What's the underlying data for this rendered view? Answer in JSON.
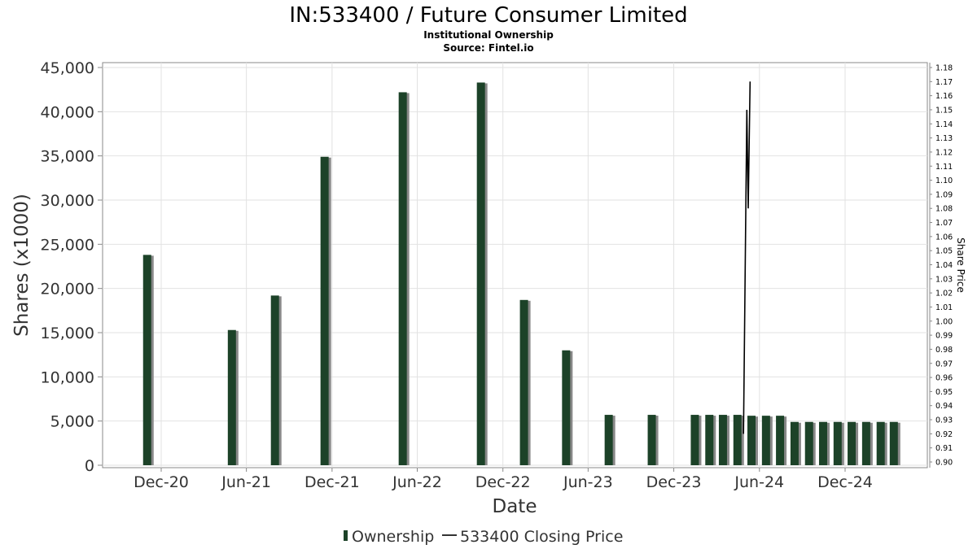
{
  "chart_data": {
    "type": "bar",
    "title": "IN:533400 / Future Consumer Limited",
    "subtitle": "Institutional Ownership",
    "source": "Source: Fintel.io",
    "xlabel": "Date",
    "ylabel": "Shares (x1000)",
    "y2label": "Share Price",
    "ylim": [
      0,
      45000
    ],
    "y2lim": [
      0.9,
      1.18
    ],
    "grid": true,
    "legend_position": "bottom-center",
    "y_ticks": [
      "0",
      "5,000",
      "10,000",
      "15,000",
      "20,000",
      "25,000",
      "30,000",
      "35,000",
      "40,000",
      "45,000"
    ],
    "y2_ticks": [
      "0.90",
      "0.91",
      "0.92",
      "0.93",
      "0.94",
      "0.95",
      "0.96",
      "0.97",
      "0.98",
      "0.99",
      "1.00",
      "1.01",
      "1.02",
      "1.03",
      "1.04",
      "1.05",
      "1.06",
      "1.07",
      "1.08",
      "1.09",
      "1.10",
      "1.11",
      "1.12",
      "1.13",
      "1.14",
      "1.15",
      "1.16",
      "1.17",
      "1.18"
    ],
    "x_ticks": [
      {
        "label": "Dec-20",
        "date": "2020-12-01"
      },
      {
        "label": "Jun-21",
        "date": "2021-06-01"
      },
      {
        "label": "Dec-21",
        "date": "2021-12-01"
      },
      {
        "label": "Jun-22",
        "date": "2022-06-01"
      },
      {
        "label": "Dec-22",
        "date": "2022-12-01"
      },
      {
        "label": "Jun-23",
        "date": "2023-06-01"
      },
      {
        "label": "Dec-23",
        "date": "2023-12-01"
      },
      {
        "label": "Jun-24",
        "date": "2024-06-01"
      },
      {
        "label": "Dec-24",
        "date": "2024-12-01"
      }
    ],
    "series": [
      {
        "name": "Ownership",
        "type": "bar",
        "color": "#1c4228",
        "shadow_color": "#888888",
        "points": [
          {
            "date": "2020-11-01",
            "value": 23800
          },
          {
            "date": "2021-05-01",
            "value": 15300
          },
          {
            "date": "2021-08-01",
            "value": 19200
          },
          {
            "date": "2021-11-15",
            "value": 34900
          },
          {
            "date": "2022-05-01",
            "value": 42200
          },
          {
            "date": "2022-10-15",
            "value": 43300
          },
          {
            "date": "2023-01-15",
            "value": 18700
          },
          {
            "date": "2023-04-15",
            "value": 13000
          },
          {
            "date": "2023-07-15",
            "value": 5700
          },
          {
            "date": "2023-10-15",
            "value": 5700
          },
          {
            "date": "2024-01-15",
            "value": 5700
          },
          {
            "date": "2024-02-15",
            "value": 5700
          },
          {
            "date": "2024-03-15",
            "value": 5700
          },
          {
            "date": "2024-04-15",
            "value": 5700
          },
          {
            "date": "2024-05-15",
            "value": 5600
          },
          {
            "date": "2024-06-15",
            "value": 5600
          },
          {
            "date": "2024-07-15",
            "value": 5600
          },
          {
            "date": "2024-08-15",
            "value": 4900
          },
          {
            "date": "2024-09-15",
            "value": 4900
          },
          {
            "date": "2024-10-15",
            "value": 4900
          },
          {
            "date": "2024-11-15",
            "value": 4900
          },
          {
            "date": "2024-12-15",
            "value": 4900
          },
          {
            "date": "2025-01-15",
            "value": 4900
          },
          {
            "date": "2025-02-15",
            "value": 4900
          },
          {
            "date": "2025-03-15",
            "value": 4900
          }
        ]
      },
      {
        "name": "533400 Closing Price",
        "type": "line",
        "axis": "right",
        "color": "#000000",
        "points": [
          {
            "date": "2024-04-28",
            "value": 0.92
          },
          {
            "date": "2024-05-05",
            "value": 1.15
          },
          {
            "date": "2024-05-08",
            "value": 1.08
          },
          {
            "date": "2024-05-12",
            "value": 1.17
          }
        ]
      }
    ]
  }
}
